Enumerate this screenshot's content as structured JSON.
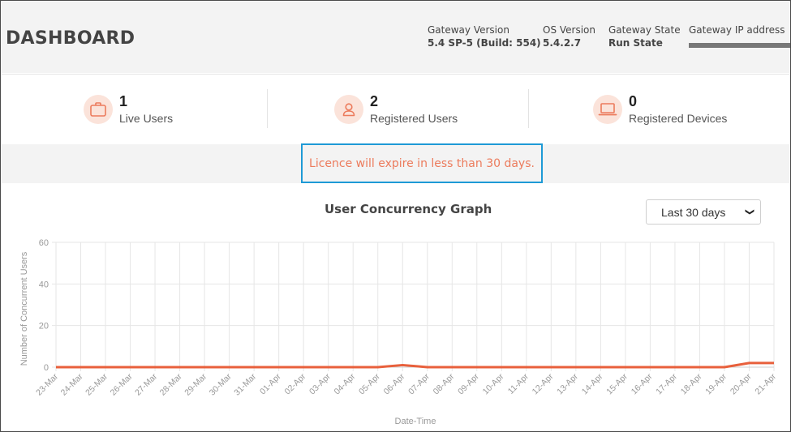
{
  "header": {
    "title": "DASHBOARD",
    "gateway_version_label": "Gateway Version",
    "gateway_version_value": "5.4 SP-5 (Build: 554)",
    "os_version_label": "OS Version",
    "os_version_value": "5.4.2.7",
    "gateway_state_label": "Gateway State",
    "gateway_state_value": "Run State",
    "gateway_ip_label": "Gateway IP address"
  },
  "stats": [
    {
      "icon": "briefcase-icon",
      "value": "1",
      "label": "Live Users"
    },
    {
      "icon": "user-icon",
      "value": "2",
      "label": "Registered Users"
    },
    {
      "icon": "laptop-icon",
      "value": "0",
      "label": "Registered Devices"
    }
  ],
  "notice": {
    "text": "Licence will expire in less than 30 days."
  },
  "range_select": {
    "value": "Last 30 days"
  },
  "colors": {
    "accent": "#ec7b5c",
    "icon_bg": "#fbe3da",
    "highlight_border": "#1e9ad6",
    "series": "#e8603c"
  },
  "chart_data": {
    "type": "line",
    "title": "User Concurrency Graph",
    "xlabel": "Date-Time",
    "ylabel": "Number of Concurrent Users",
    "ylim": [
      0,
      60
    ],
    "yticks": [
      0,
      20,
      40,
      60
    ],
    "grid": true,
    "categories": [
      "23-Mar",
      "24-Mar",
      "25-Mar",
      "26-Mar",
      "27-Mar",
      "28-Mar",
      "29-Mar",
      "30-Mar",
      "31-Mar",
      "01-Apr",
      "02-Apr",
      "03-Apr",
      "04-Apr",
      "05-Apr",
      "06-Apr",
      "07-Apr",
      "08-Apr",
      "09-Apr",
      "10-Apr",
      "11-Apr",
      "12-Apr",
      "13-Apr",
      "14-Apr",
      "15-Apr",
      "16-Apr",
      "17-Apr",
      "18-Apr",
      "19-Apr",
      "20-Apr",
      "21-Apr"
    ],
    "series": [
      {
        "values": [
          0,
          0,
          0,
          0,
          0,
          0,
          0,
          0,
          0,
          0,
          0,
          0,
          0,
          0,
          1,
          0,
          0,
          0,
          0,
          0,
          0,
          0,
          0,
          0,
          0,
          0,
          0,
          0,
          2,
          2
        ]
      }
    ]
  }
}
